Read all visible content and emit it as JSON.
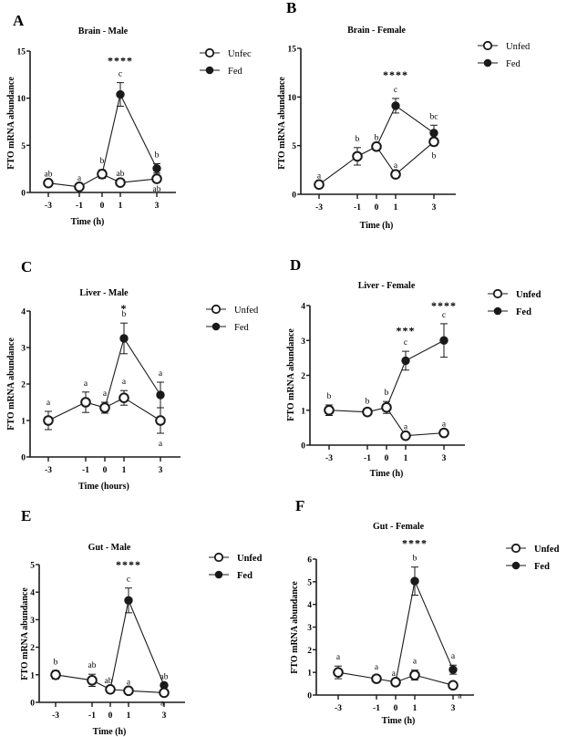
{
  "chart_data": [
    {
      "type": "line",
      "panel": "A",
      "title": "Brain - Male",
      "xlabel": "Time (h)",
      "ylabel": "FTO mRNA abundance",
      "ylim": [
        0,
        15
      ],
      "yticks": [
        0,
        5,
        10,
        15
      ],
      "x": [
        -3,
        -1,
        0,
        1,
        3
      ],
      "xtick_labels": [
        "-3",
        "-1",
        "0",
        "1",
        "3"
      ],
      "legend": [
        "Unfed",
        "Fed"
      ],
      "legend_display": [
        "Unfec",
        "Fed"
      ],
      "legend_bold": false,
      "series": [
        {
          "name": "Unfed",
          "marker": "open-circle",
          "x": [
            -3,
            -1,
            0,
            1,
            3
          ],
          "values": [
            1.0,
            0.6,
            1.95,
            1.05,
            1.45
          ],
          "err": [
            0.0,
            0.0,
            0.45,
            0.0,
            0.0
          ]
        },
        {
          "name": "Fed",
          "marker": "filled-circle",
          "x": [
            0,
            1,
            3
          ],
          "values": [
            1.95,
            10.4,
            2.55
          ],
          "err": [
            0.0,
            1.25,
            0.5
          ]
        }
      ],
      "letters": [
        {
          "x": -3,
          "y": 1.0,
          "text": "ab",
          "pos": "above"
        },
        {
          "x": -1,
          "y": 0.6,
          "text": "a",
          "pos": "above"
        },
        {
          "x": 0,
          "y": 2.4,
          "text": "b",
          "pos": "above"
        },
        {
          "x": 1,
          "y": 1.05,
          "text": "ab",
          "pos": "above"
        },
        {
          "x": 1,
          "y": 11.65,
          "text": "c",
          "pos": "above"
        },
        {
          "x": 3,
          "y": 3.05,
          "text": "b",
          "pos": "above"
        },
        {
          "x": 3,
          "y": 1.45,
          "text": "ab",
          "pos": "below"
        }
      ],
      "significance": [
        {
          "x": 1,
          "text": "****",
          "y": 14.0
        }
      ]
    },
    {
      "type": "line",
      "panel": "B",
      "title": "Brain - Female",
      "xlabel": "Time (h)",
      "ylabel": "FTO mRNA abundance",
      "ylim": [
        0,
        15
      ],
      "yticks": [
        0,
        5,
        10,
        15
      ],
      "x": [
        -3,
        -1,
        0,
        1,
        3
      ],
      "xtick_labels": [
        "-3",
        "-1",
        "0",
        "1",
        "3"
      ],
      "legend": [
        "Unfed",
        "Fed"
      ],
      "legend_display": [
        "Unfed",
        "Fed"
      ],
      "legend_bold": false,
      "series": [
        {
          "name": "Unfed",
          "marker": "open-circle",
          "x": [
            -3,
            -1,
            0,
            1,
            3
          ],
          "values": [
            1.0,
            3.9,
            4.9,
            2.05,
            5.4
          ],
          "err": [
            0.0,
            0.9,
            0.0,
            0.0,
            0.4
          ]
        },
        {
          "name": "Fed",
          "marker": "filled-circle",
          "x": [
            0,
            1,
            3
          ],
          "values": [
            4.9,
            9.1,
            6.3
          ],
          "err": [
            0.0,
            0.75,
            0.8
          ]
        }
      ],
      "letters": [
        {
          "x": -3,
          "y": 1.0,
          "text": "a",
          "pos": "above"
        },
        {
          "x": -1,
          "y": 4.8,
          "text": "b",
          "pos": "above"
        },
        {
          "x": 0,
          "y": 4.9,
          "text": "b",
          "pos": "above"
        },
        {
          "x": 1,
          "y": 2.05,
          "text": "a",
          "pos": "above"
        },
        {
          "x": 1,
          "y": 9.85,
          "text": "c",
          "pos": "above"
        },
        {
          "x": 3,
          "y": 7.1,
          "text": "bc",
          "pos": "above"
        },
        {
          "x": 3,
          "y": 5.0,
          "text": "b",
          "pos": "below"
        }
      ],
      "significance": [
        {
          "x": 1,
          "text": "****",
          "y": 12.3
        }
      ]
    },
    {
      "type": "line",
      "panel": "C",
      "title": "Liver - Male",
      "xlabel": "Time (hours)",
      "ylabel": "FTO mRNA abundance",
      "ylim": [
        0,
        4
      ],
      "yticks": [
        0,
        1,
        2,
        3,
        4
      ],
      "x": [
        -3,
        -1,
        0,
        1,
        3
      ],
      "xtick_labels": [
        "-3",
        "-1",
        "0",
        "1",
        "3"
      ],
      "legend": [
        "Unfed",
        "Fed"
      ],
      "legend_display": [
        "Unfed",
        "Fed"
      ],
      "legend_bold": false,
      "series": [
        {
          "name": "Unfed",
          "marker": "open-circle",
          "x": [
            -3,
            -1,
            0,
            1,
            3
          ],
          "values": [
            1.0,
            1.5,
            1.35,
            1.62,
            1.0
          ],
          "err": [
            0.25,
            0.28,
            0.15,
            0.2,
            0.35
          ]
        },
        {
          "name": "Fed",
          "marker": "filled-circle",
          "x": [
            0,
            1,
            3
          ],
          "values": [
            1.35,
            3.25,
            1.7
          ],
          "err": [
            0.0,
            0.42,
            0.35
          ]
        }
      ],
      "letters": [
        {
          "x": -3,
          "y": 1.25,
          "text": "a",
          "pos": "above"
        },
        {
          "x": -1,
          "y": 1.78,
          "text": "a",
          "pos": "above"
        },
        {
          "x": 0,
          "y": 1.5,
          "text": "a",
          "pos": "above"
        },
        {
          "x": 1,
          "y": 1.82,
          "text": "a",
          "pos": "above"
        },
        {
          "x": 1,
          "y": 3.67,
          "text": "b",
          "pos": "above"
        },
        {
          "x": 3,
          "y": 2.05,
          "text": "a",
          "pos": "above"
        },
        {
          "x": 3,
          "y": 0.65,
          "text": "a",
          "pos": "below"
        }
      ],
      "significance": [
        {
          "x": 1,
          "text": "*",
          "y": 4.08
        }
      ]
    },
    {
      "type": "line",
      "panel": "D",
      "title": "Liver - Female",
      "xlabel": "Time (h)",
      "ylabel": "FTO mRNA abundance",
      "ylim": [
        0,
        4
      ],
      "yticks": [
        0,
        1,
        2,
        3,
        4
      ],
      "x": [
        -3,
        -1,
        0,
        1,
        3
      ],
      "xtick_labels": [
        "-3",
        "-1",
        "0",
        "1",
        "3"
      ],
      "legend": [
        "Unfed",
        "Fed"
      ],
      "legend_display": [
        "Unfed",
        "Fed"
      ],
      "legend_bold": true,
      "series": [
        {
          "name": "Unfed",
          "marker": "open-circle",
          "x": [
            -3,
            -1,
            0,
            1,
            3
          ],
          "values": [
            1.0,
            0.95,
            1.08,
            0.27,
            0.35
          ],
          "err": [
            0.15,
            0.06,
            0.17,
            0.0,
            0.0
          ]
        },
        {
          "name": "Fed",
          "marker": "filled-circle",
          "x": [
            0,
            1,
            3
          ],
          "values": [
            1.08,
            2.42,
            3.0
          ],
          "err": [
            0.0,
            0.27,
            0.48
          ]
        }
      ],
      "letters": [
        {
          "x": -3,
          "y": 1.15,
          "text": "b",
          "pos": "above"
        },
        {
          "x": -1,
          "y": 1.01,
          "text": "b",
          "pos": "above"
        },
        {
          "x": 0,
          "y": 1.25,
          "text": "b",
          "pos": "above"
        },
        {
          "x": 1,
          "y": 0.27,
          "text": "a",
          "pos": "above"
        },
        {
          "x": 1,
          "y": 2.69,
          "text": "c",
          "pos": "above"
        },
        {
          "x": 3,
          "y": 0.35,
          "text": "a",
          "pos": "above"
        },
        {
          "x": 3,
          "y": 3.48,
          "text": "c",
          "pos": "above"
        }
      ],
      "significance": [
        {
          "x": 1,
          "text": "***",
          "y": 3.28
        },
        {
          "x": 3,
          "text": "****",
          "y": 4.0
        }
      ]
    },
    {
      "type": "line",
      "panel": "E",
      "title": "Gut - Male",
      "xlabel": "Time (h)",
      "ylabel": "FTO mRNA abundance",
      "ylim": [
        0,
        5
      ],
      "yticks": [
        0,
        1,
        2,
        3,
        4,
        5
      ],
      "x": [
        -3,
        -1,
        0,
        1,
        3
      ],
      "xtick_labels": [
        "-3",
        "-1",
        "0",
        "1",
        "3"
      ],
      "legend": [
        "Unfed",
        "Fed"
      ],
      "legend_display": [
        "Unfed",
        "Fed"
      ],
      "legend_bold": true,
      "series": [
        {
          "name": "Unfed",
          "marker": "open-circle",
          "x": [
            -3,
            -1,
            0,
            1,
            3
          ],
          "values": [
            1.0,
            0.8,
            0.47,
            0.42,
            0.35
          ],
          "err": [
            0.15,
            0.22,
            0.0,
            0.0,
            0.0
          ]
        },
        {
          "name": "Fed",
          "marker": "filled-circle",
          "x": [
            0,
            1,
            3
          ],
          "values": [
            0.47,
            3.7,
            0.62
          ],
          "err": [
            0.0,
            0.45,
            0.0
          ]
        }
      ],
      "letters": [
        {
          "x": -3,
          "y": 1.15,
          "text": "b",
          "pos": "above"
        },
        {
          "x": -1,
          "y": 1.02,
          "text": "ab",
          "pos": "above"
        },
        {
          "x": -0.1,
          "y": 0.47,
          "text": "ab",
          "pos": "above"
        },
        {
          "x": 1,
          "y": 0.42,
          "text": "a",
          "pos": "above"
        },
        {
          "x": 1,
          "y": 4.15,
          "text": "c",
          "pos": "above"
        },
        {
          "x": 3,
          "y": 0.62,
          "text": "ab",
          "pos": "above"
        },
        {
          "x": 2.9,
          "y": 0.35,
          "text": "a",
          "pos": "below"
        }
      ],
      "significance": [
        {
          "x": 1,
          "text": "****",
          "y": 5.0
        }
      ]
    },
    {
      "type": "line",
      "panel": "F",
      "title": "Gut - Female",
      "xlabel": "Time (h)",
      "ylabel": "FTO mRNA abundance",
      "ylim": [
        0,
        6
      ],
      "yticks": [
        0,
        1,
        2,
        3,
        4,
        5,
        6
      ],
      "x": [
        -3,
        -1,
        0,
        1,
        3
      ],
      "xtick_labels": [
        "-3",
        "-1",
        "0",
        "1",
        "3"
      ],
      "legend": [
        "Unfed",
        "Fed"
      ],
      "legend_display": [
        "Unfed",
        "Fed"
      ],
      "legend_bold": true,
      "series": [
        {
          "name": "Unfed",
          "marker": "open-circle",
          "x": [
            -3,
            -1,
            0,
            1,
            3
          ],
          "values": [
            1.0,
            0.72,
            0.57,
            0.88,
            0.43
          ],
          "err": [
            0.28,
            0.13,
            0.0,
            0.22,
            0.0
          ]
        },
        {
          "name": "Fed",
          "marker": "filled-circle",
          "x": [
            0,
            1,
            3
          ],
          "values": [
            0.57,
            5.03,
            1.12
          ],
          "err": [
            0.0,
            0.62,
            0.2
          ]
        }
      ],
      "letters": [
        {
          "x": -3,
          "y": 1.28,
          "text": "a",
          "pos": "above"
        },
        {
          "x": -1,
          "y": 0.85,
          "text": "a",
          "pos": "above"
        },
        {
          "x": -0.1,
          "y": 0.57,
          "text": "a",
          "pos": "above"
        },
        {
          "x": 1,
          "y": 1.1,
          "text": "a",
          "pos": "above"
        },
        {
          "x": 1,
          "y": 5.65,
          "text": "b",
          "pos": "above"
        },
        {
          "x": 3,
          "y": 1.32,
          "text": "a",
          "pos": "above"
        },
        {
          "x": 3.35,
          "y": 0.43,
          "text": "a",
          "pos": "below"
        }
      ],
      "significance": [
        {
          "x": 1,
          "text": "****",
          "y": 6.7
        }
      ]
    }
  ]
}
